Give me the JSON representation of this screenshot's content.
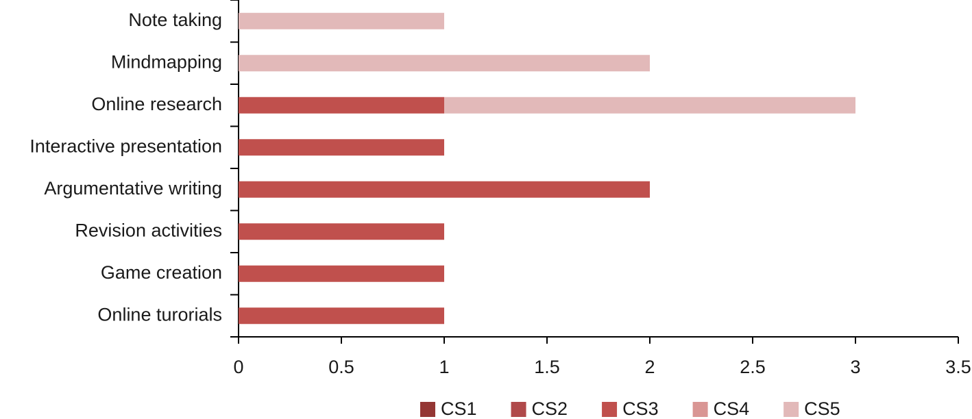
{
  "chart_data": {
    "type": "bar",
    "orientation": "horizontal",
    "stacked": true,
    "categories": [
      "Note taking",
      "Mindmapping",
      "Online research",
      "Interactive presentation",
      "Argumentative writing",
      "Revision activities",
      "Game creation",
      "Online turorials"
    ],
    "series": [
      {
        "name": "CS1",
        "color": "#943634",
        "values": [
          0,
          0,
          0,
          0,
          0,
          0,
          0,
          0
        ]
      },
      {
        "name": "CS2",
        "color": "#b0494a",
        "values": [
          0,
          0,
          0,
          0,
          0,
          0,
          0,
          0
        ]
      },
      {
        "name": "CS3",
        "color": "#c0504d",
        "values": [
          0,
          0,
          1,
          1,
          2,
          1,
          1,
          1
        ]
      },
      {
        "name": "CS4",
        "color": "#d99694",
        "values": [
          0,
          0,
          0,
          0,
          0,
          0,
          0,
          0
        ]
      },
      {
        "name": "CS5",
        "color": "#e2b9b9",
        "values": [
          1,
          2,
          2,
          0,
          0,
          0,
          0,
          0
        ]
      }
    ],
    "xlim": [
      0,
      3.5
    ],
    "xticks": [
      0,
      0.5,
      1,
      1.5,
      2,
      2.5,
      3,
      3.5
    ],
    "grid": false,
    "legend": "bottom"
  }
}
